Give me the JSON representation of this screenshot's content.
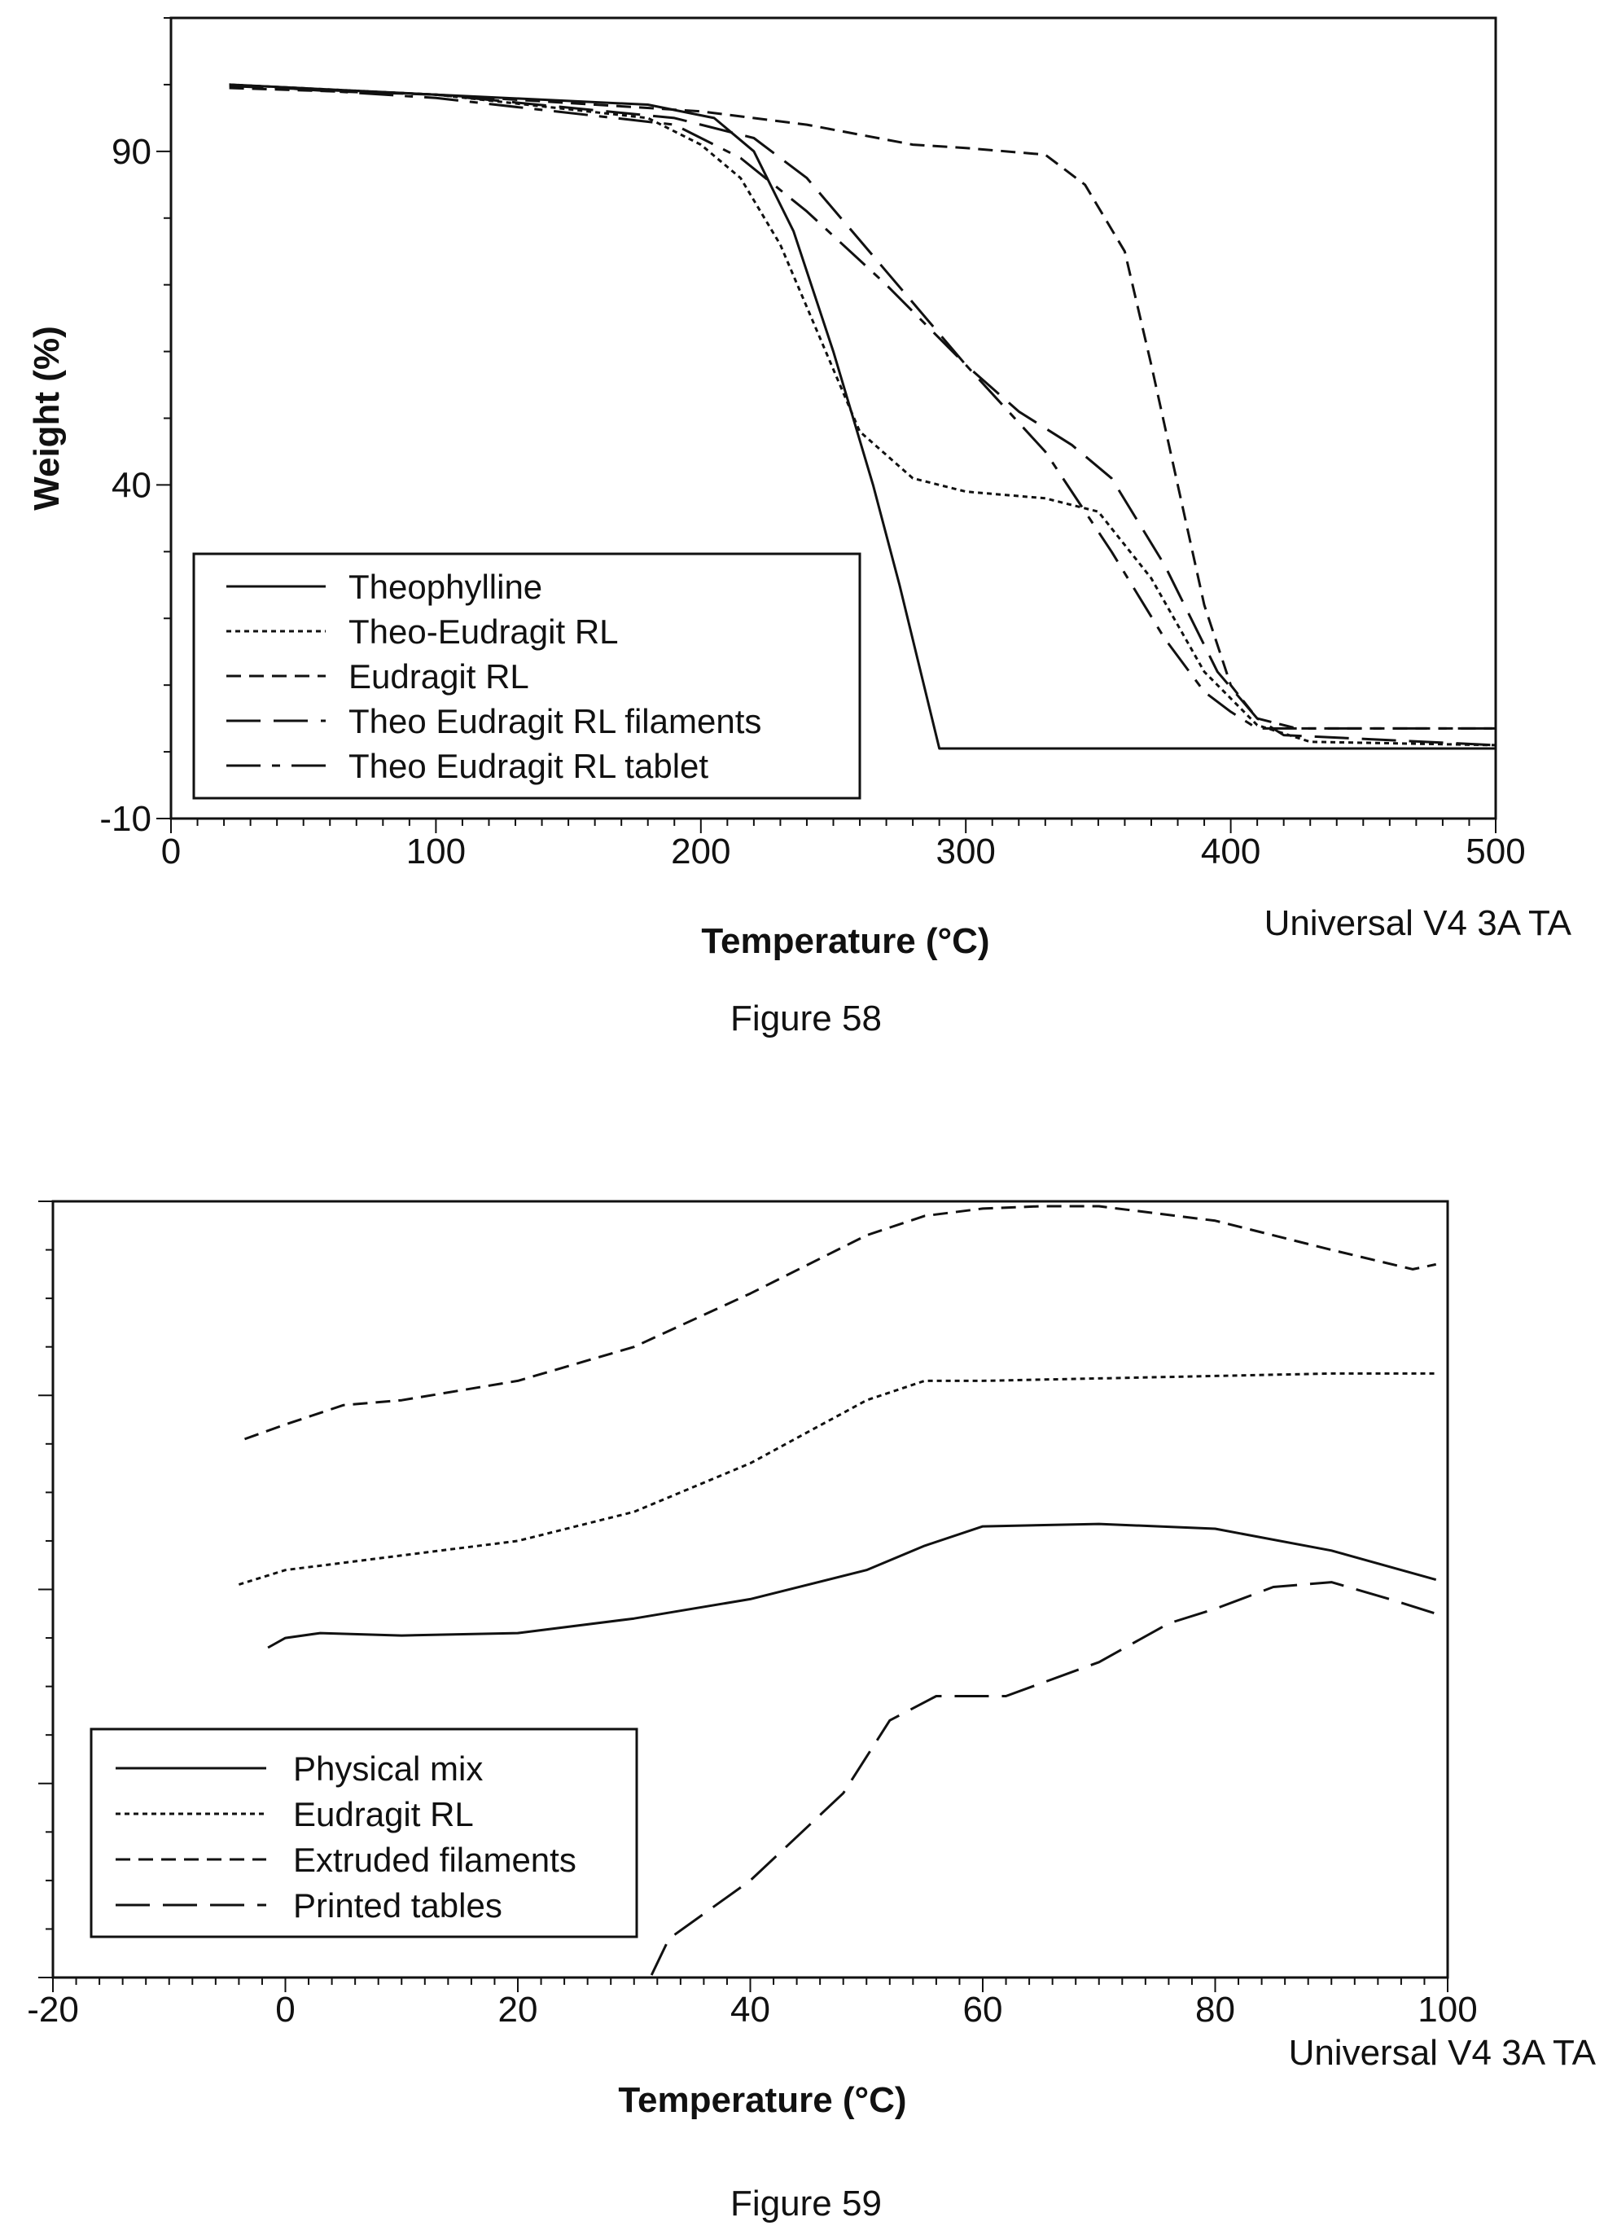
{
  "chart_data": [
    {
      "type": "line",
      "caption": "Figure 58",
      "xlabel": "Temperature (°C)",
      "ylabel": "Weight (%)",
      "instrument_note": "Universal V4 3A TA",
      "xlim": [
        0,
        500
      ],
      "ylim": [
        -10,
        110
      ],
      "x_ticks": [
        "0",
        "100",
        "200",
        "300",
        "400",
        "500"
      ],
      "y_ticks": [
        "-10",
        "40",
        "90"
      ],
      "y_tick_values": [
        -10,
        40,
        90
      ],
      "x_minor_step": 10,
      "y_minor_step": 10,
      "legend_position": "bottom-left",
      "series": [
        {
          "name": "Theophylline",
          "style": "solid",
          "x": [
            22,
            100,
            180,
            205,
            220,
            235,
            250,
            265,
            275,
            290,
            350,
            450,
            500
          ],
          "y": [
            100,
            98.5,
            97,
            95,
            90,
            78,
            60,
            40,
            25,
            0.5,
            0.5,
            0.5,
            0.5
          ]
        },
        {
          "name": "Theo-Eudragit RL",
          "style": "dotted",
          "x": [
            22,
            100,
            180,
            200,
            215,
            230,
            245,
            260,
            280,
            300,
            330,
            350,
            370,
            390,
            410,
            430,
            500
          ],
          "y": [
            100,
            98.5,
            95,
            91,
            86,
            76,
            62,
            48,
            41,
            39,
            38,
            36,
            26,
            12,
            4,
            1.5,
            1
          ]
        },
        {
          "name": "Eudragit RL",
          "style": "dashed",
          "x": [
            22,
            100,
            200,
            240,
            280,
            300,
            330,
            345,
            360,
            370,
            380,
            390,
            400,
            410,
            425,
            500
          ],
          "y": [
            99.5,
            98.5,
            96,
            94,
            91,
            90.5,
            89.5,
            85,
            75,
            58,
            40,
            22,
            10,
            5,
            3.5,
            3.5
          ]
        },
        {
          "name": "Theo Eudragit RL filaments",
          "style": "long-dash",
          "x": [
            22,
            100,
            190,
            220,
            240,
            270,
            300,
            320,
            340,
            355,
            375,
            395,
            410,
            420,
            500
          ],
          "y": [
            99.8,
            98.5,
            95,
            92,
            86,
            72,
            58,
            51,
            46,
            41,
            28,
            12,
            5,
            2.5,
            1
          ]
        },
        {
          "name": "Theo Eudragit RL tablet",
          "style": "dash-dot",
          "x": [
            22,
            100,
            190,
            215,
            240,
            270,
            300,
            330,
            355,
            375,
            390,
            400,
            410,
            500
          ],
          "y": [
            100,
            98,
            94,
            89,
            81,
            70,
            58,
            45,
            30,
            17,
            9,
            6,
            3.5,
            3.5
          ]
        }
      ]
    },
    {
      "type": "line",
      "caption": "Figure 59",
      "xlabel": "Temperature (°C)",
      "ylabel": "",
      "instrument_note": "Universal V4 3A TA",
      "xlim": [
        -20,
        100
      ],
      "ylim": [
        0,
        16
      ],
      "x_ticks": [
        "-20",
        "0",
        "20",
        "40",
        "60",
        "80",
        "100"
      ],
      "x_tick_values": [
        -20,
        0,
        20,
        40,
        60,
        80,
        100
      ],
      "x_minor_step": 2,
      "y_minor_step": 1,
      "y_major_step": 4,
      "legend_position": "bottom-left",
      "series": [
        {
          "name": "Physical mix",
          "style": "solid",
          "x": [
            -1.5,
            0,
            3,
            10,
            20,
            30,
            40,
            50,
            55,
            60,
            70,
            80,
            90,
            99
          ],
          "y": [
            6.8,
            7.0,
            7.1,
            7.05,
            7.1,
            7.4,
            7.8,
            8.4,
            8.9,
            9.3,
            9.35,
            9.25,
            8.8,
            8.2
          ]
        },
        {
          "name": "Eudragit RL",
          "style": "dotted",
          "x": [
            -4,
            0,
            10,
            20,
            30,
            40,
            50,
            55,
            60,
            70,
            80,
            90,
            99
          ],
          "y": [
            8.1,
            8.4,
            8.7,
            9.0,
            9.6,
            10.6,
            11.9,
            12.3,
            12.3,
            12.35,
            12.4,
            12.45,
            12.45
          ]
        },
        {
          "name": "Extruded filaments",
          "style": "dashed",
          "x": [
            -3.5,
            0,
            5,
            10,
            20,
            30,
            40,
            50,
            55,
            60,
            65,
            70,
            80,
            90,
            97,
            99
          ],
          "y": [
            11.1,
            11.4,
            11.8,
            11.9,
            12.3,
            13.0,
            14.1,
            15.3,
            15.7,
            15.85,
            15.9,
            15.9,
            15.6,
            15.0,
            14.6,
            14.7
          ]
        },
        {
          "name": "Printed tables",
          "style": "long-dash",
          "x": [
            31.5,
            33,
            40,
            48,
            52,
            56,
            62,
            70,
            76,
            80,
            85,
            90,
            95,
            99
          ],
          "y": [
            0.05,
            0.8,
            2.0,
            3.8,
            5.3,
            5.8,
            5.8,
            6.5,
            7.3,
            7.6,
            8.05,
            8.15,
            7.8,
            7.5
          ]
        }
      ]
    }
  ]
}
